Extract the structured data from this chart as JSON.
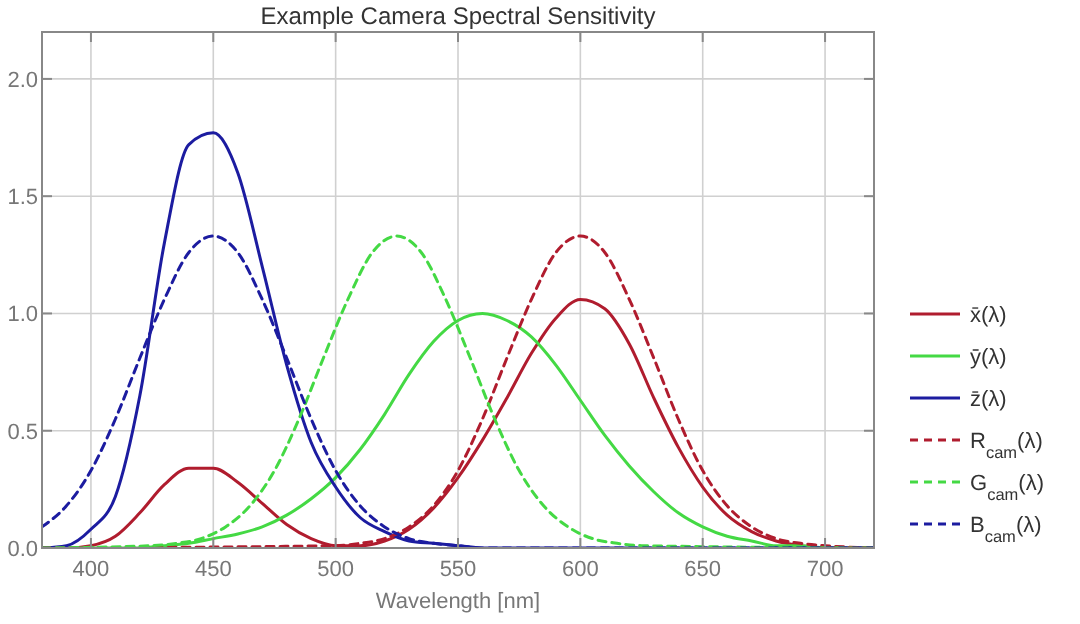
{
  "chart_data": {
    "type": "line",
    "title": "Example Camera Spectral Sensitivity",
    "xlabel": "Wavelength [nm]",
    "xlim": [
      380,
      720
    ],
    "ylim": [
      0,
      2.2
    ],
    "xticks": [
      400,
      450,
      500,
      550,
      600,
      650,
      700
    ],
    "yticks": [
      {
        "value": 0,
        "label": "0.0"
      },
      {
        "value": 0.5,
        "label": "0.5"
      },
      {
        "value": 1,
        "label": "1.0"
      },
      {
        "value": 1.5,
        "label": "1.5"
      },
      {
        "value": 2,
        "label": "2.0"
      }
    ],
    "grid": true,
    "legend": "right",
    "marker": "none",
    "series": [
      {
        "name": "x̄(λ)",
        "color": "#b01c2e",
        "line_style": "solid",
        "x": [
          380,
          390,
          400,
          410,
          420,
          430,
          440,
          450,
          460,
          470,
          480,
          490,
          500,
          510,
          520,
          530,
          540,
          550,
          560,
          570,
          580,
          590,
          600,
          610,
          620,
          630,
          640,
          650,
          660,
          670,
          680,
          690,
          700,
          710,
          720
        ],
        "values": [
          0,
          0,
          0.01,
          0.05,
          0.15,
          0.27,
          0.34,
          0.34,
          0.28,
          0.19,
          0.1,
          0.04,
          0.01,
          0.01,
          0.03,
          0.08,
          0.17,
          0.3,
          0.46,
          0.64,
          0.83,
          0.98,
          1.06,
          1.02,
          0.87,
          0.64,
          0.43,
          0.26,
          0.14,
          0.07,
          0.03,
          0.01,
          0,
          0,
          0
        ]
      },
      {
        "name": "ȳ(λ)",
        "color": "#44d944",
        "line_style": "solid",
        "x": [
          380,
          400,
          420,
          430,
          440,
          450,
          460,
          470,
          480,
          490,
          500,
          510,
          520,
          530,
          540,
          550,
          560,
          570,
          580,
          590,
          600,
          610,
          620,
          630,
          640,
          650,
          660,
          670,
          680,
          690,
          700,
          720
        ],
        "values": [
          0,
          0,
          0,
          0.01,
          0.02,
          0.04,
          0.06,
          0.09,
          0.14,
          0.21,
          0.3,
          0.42,
          0.57,
          0.74,
          0.88,
          0.97,
          1,
          0.97,
          0.9,
          0.78,
          0.63,
          0.48,
          0.35,
          0.24,
          0.15,
          0.09,
          0.05,
          0.03,
          0.01,
          0.01,
          0,
          0
        ]
      },
      {
        "name": "z̄(λ)",
        "color": "#1c1ca0",
        "line_style": "solid",
        "x": [
          380,
          390,
          400,
          410,
          420,
          430,
          440,
          450,
          460,
          470,
          480,
          490,
          500,
          510,
          520,
          530,
          540,
          550,
          560,
          720
        ],
        "values": [
          0,
          0.01,
          0.08,
          0.22,
          0.65,
          1.3,
          1.72,
          1.77,
          1.6,
          1.2,
          0.78,
          0.45,
          0.26,
          0.13,
          0.07,
          0.03,
          0.02,
          0.01,
          0,
          0
        ]
      },
      {
        "name": "R$_{cam}$(λ)",
        "color": "#b01c2e",
        "line_style": "dashed",
        "x": [
          380,
          500,
          510,
          520,
          530,
          540,
          550,
          560,
          570,
          580,
          590,
          600,
          610,
          620,
          630,
          640,
          650,
          660,
          670,
          680,
          690,
          700,
          720
        ],
        "values": [
          0,
          0.01,
          0.02,
          0.04,
          0.09,
          0.18,
          0.33,
          0.55,
          0.81,
          1.06,
          1.26,
          1.33,
          1.26,
          1.06,
          0.81,
          0.55,
          0.33,
          0.18,
          0.09,
          0.04,
          0.02,
          0.01,
          0
        ]
      },
      {
        "name": "G$_{cam}$(λ)",
        "color": "#44d944",
        "line_style": "dashed",
        "x": [
          380,
          425,
          435,
          445,
          455,
          465,
          475,
          485,
          495,
          505,
          515,
          525,
          535,
          545,
          555,
          565,
          575,
          585,
          595,
          605,
          615,
          625,
          720
        ],
        "values": [
          0,
          0.01,
          0.02,
          0.04,
          0.09,
          0.18,
          0.33,
          0.55,
          0.81,
          1.06,
          1.26,
          1.33,
          1.26,
          1.06,
          0.81,
          0.55,
          0.33,
          0.18,
          0.09,
          0.04,
          0.02,
          0.01,
          0
        ]
      },
      {
        "name": "B$_{cam}$(λ)",
        "color": "#1c1ca0",
        "line_style": "dashed",
        "x": [
          380,
          390,
          400,
          410,
          420,
          430,
          440,
          450,
          460,
          470,
          480,
          490,
          500,
          510,
          520,
          530,
          540,
          550,
          560,
          720
        ],
        "values": [
          0.09,
          0.18,
          0.33,
          0.55,
          0.81,
          1.06,
          1.26,
          1.33,
          1.26,
          1.06,
          0.81,
          0.55,
          0.33,
          0.18,
          0.09,
          0.04,
          0.02,
          0.01,
          0,
          0
        ]
      }
    ]
  }
}
